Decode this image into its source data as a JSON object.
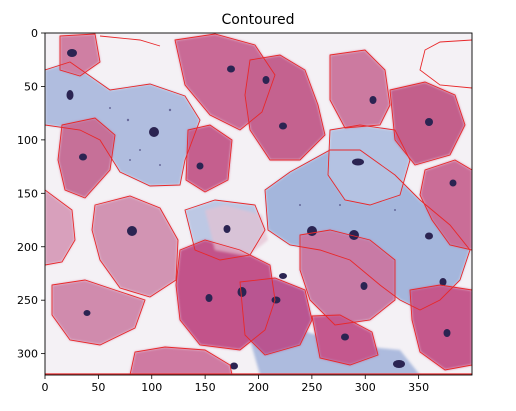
{
  "title": "Contoured",
  "axes": {
    "x_ticks": [
      "0",
      "50",
      "100",
      "150",
      "200",
      "250",
      "300",
      "350"
    ],
    "y_ticks": [
      "0",
      "50",
      "100",
      "150",
      "200",
      "250",
      "300"
    ],
    "x_range": [
      0,
      400
    ],
    "y_range": [
      0,
      320
    ],
    "y_inverted": true
  },
  "colors": {
    "contour": "#e8282a",
    "background": "#f5f3f6",
    "pink_cell": "#c86a95",
    "pink_cell_light": "#d99ab7",
    "blue_cell": "#9fb2d8",
    "nucleus": "#2b2452"
  }
}
